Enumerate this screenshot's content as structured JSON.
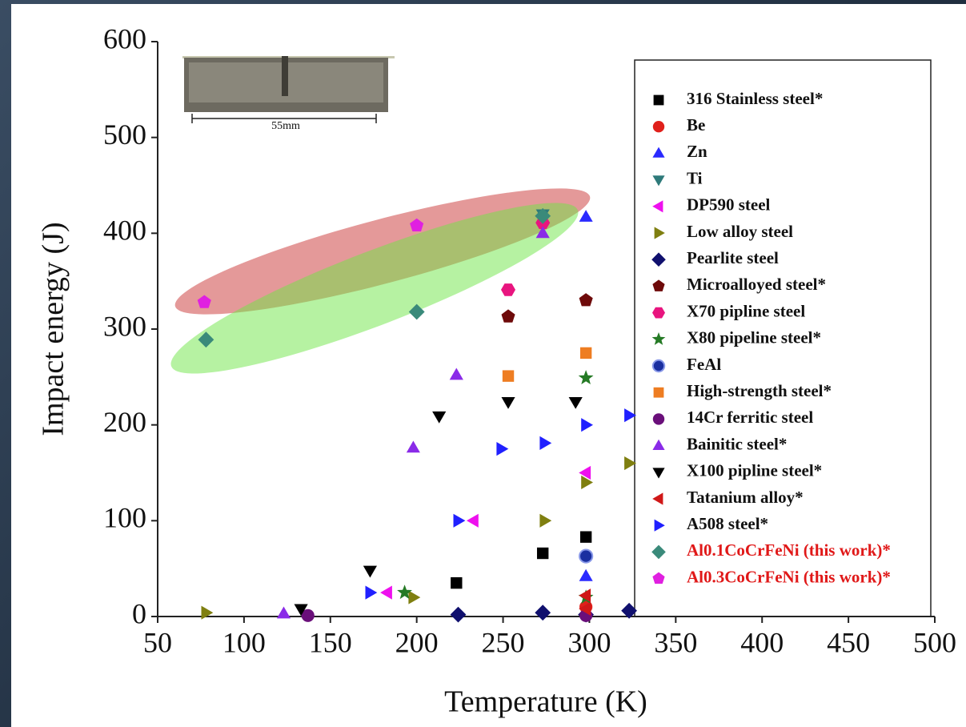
{
  "chart_data": {
    "type": "scatter",
    "x_label": "Temperature (K)",
    "y_label": "Impact energy (J)",
    "inset_caption": "55mm",
    "xlim": [
      50,
      500
    ],
    "ylim": [
      0,
      600
    ],
    "xticks": [
      50,
      100,
      150,
      200,
      250,
      300,
      350,
      400,
      450,
      500
    ],
    "yticks": [
      0,
      100,
      200,
      300,
      400,
      500,
      600
    ],
    "series": [
      {
        "name": "316 Stainless steel*",
        "color": "#000000",
        "marker": "square",
        "x": [
          223,
          273,
          298
        ],
        "values": [
          35,
          66,
          83
        ]
      },
      {
        "name": "Be",
        "color": "#e0201b",
        "marker": "circle",
        "x": [
          298
        ],
        "values": [
          10
        ]
      },
      {
        "name": "Zn",
        "color": "#2a2aff",
        "marker": "triangle-up",
        "x": [
          298,
          298
        ],
        "values": [
          42,
          417
        ]
      },
      {
        "name": "Ti",
        "color": "#2e7a7a",
        "marker": "triangle-down",
        "x": [
          273
        ],
        "values": [
          420
        ]
      },
      {
        "name": "DP590 steel",
        "color": "#ee10ee",
        "marker": "triangle-left",
        "x": [
          183,
          233,
          298
        ],
        "values": [
          25,
          100,
          150
        ]
      },
      {
        "name": "Low alloy steel",
        "color": "#7f7f10",
        "marker": "triangle-right",
        "x": [
          78,
          198,
          274,
          298,
          323
        ],
        "values": [
          4,
          20,
          100,
          140,
          160
        ]
      },
      {
        "name": "Pearlite steel",
        "color": "#10106e",
        "marker": "diamond",
        "x": [
          224,
          273,
          298,
          323
        ],
        "values": [
          2,
          4,
          2,
          6
        ]
      },
      {
        "name": "Microalloyed steel*",
        "color": "#6e0a0a",
        "marker": "pentagon",
        "x": [
          253,
          298
        ],
        "values": [
          313,
          330
        ]
      },
      {
        "name": "X70 pipline steel",
        "color": "#e8157f",
        "marker": "hexagon",
        "x": [
          253,
          273
        ],
        "values": [
          341,
          411
        ]
      },
      {
        "name": "X80 pipeline steel*",
        "color": "#257a25",
        "marker": "star",
        "x": [
          193,
          298,
          298
        ],
        "values": [
          25,
          249,
          20
        ]
      },
      {
        "name": "FeAl",
        "color": "#1a2fa0",
        "marker": "sphere",
        "x": [
          298
        ],
        "values": [
          63
        ]
      },
      {
        "name": "High-strength steel*",
        "color": "#ee7d22",
        "marker": "square",
        "x": [
          253,
          298
        ],
        "values": [
          251,
          275
        ]
      },
      {
        "name": "14Cr ferritic steel",
        "color": "#6a0f7a",
        "marker": "circle",
        "x": [
          137,
          298
        ],
        "values": [
          1,
          1
        ]
      },
      {
        "name": "Bainitic steel*",
        "color": "#8a2be8",
        "marker": "triangle-up",
        "x": [
          123,
          198,
          223,
          273
        ],
        "values": [
          3,
          176,
          252,
          400
        ]
      },
      {
        "name": "X100 pipline steel*",
        "color": "#000000",
        "marker": "triangle-down",
        "x": [
          133,
          173,
          213,
          253,
          292
        ],
        "values": [
          8,
          48,
          209,
          224,
          224
        ]
      },
      {
        "name": "Tatanium alloy*",
        "color": "#d01818",
        "marker": "triangle-left",
        "x": [
          298,
          298
        ],
        "values": [
          8,
          22
        ]
      },
      {
        "name": "A508 steel*",
        "color": "#2020ff",
        "marker": "triangle-right",
        "x": [
          173,
          224,
          249,
          274,
          298,
          323
        ],
        "values": [
          25,
          100,
          175,
          181,
          200,
          210
        ]
      },
      {
        "name": "Al0.1CoCrFeNi (this work)*",
        "color": "#3a8a7a",
        "marker": "diamond",
        "label_color": "#e01818",
        "x": [
          78,
          200,
          273
        ],
        "values": [
          289,
          318,
          418
        ]
      },
      {
        "name": "Al0.3CoCrFeNi (this work)*",
        "color": "#e020e0",
        "marker": "pentagon",
        "label_color": "#e01818",
        "x": [
          77,
          200
        ],
        "values": [
          328,
          408
        ]
      }
    ]
  }
}
